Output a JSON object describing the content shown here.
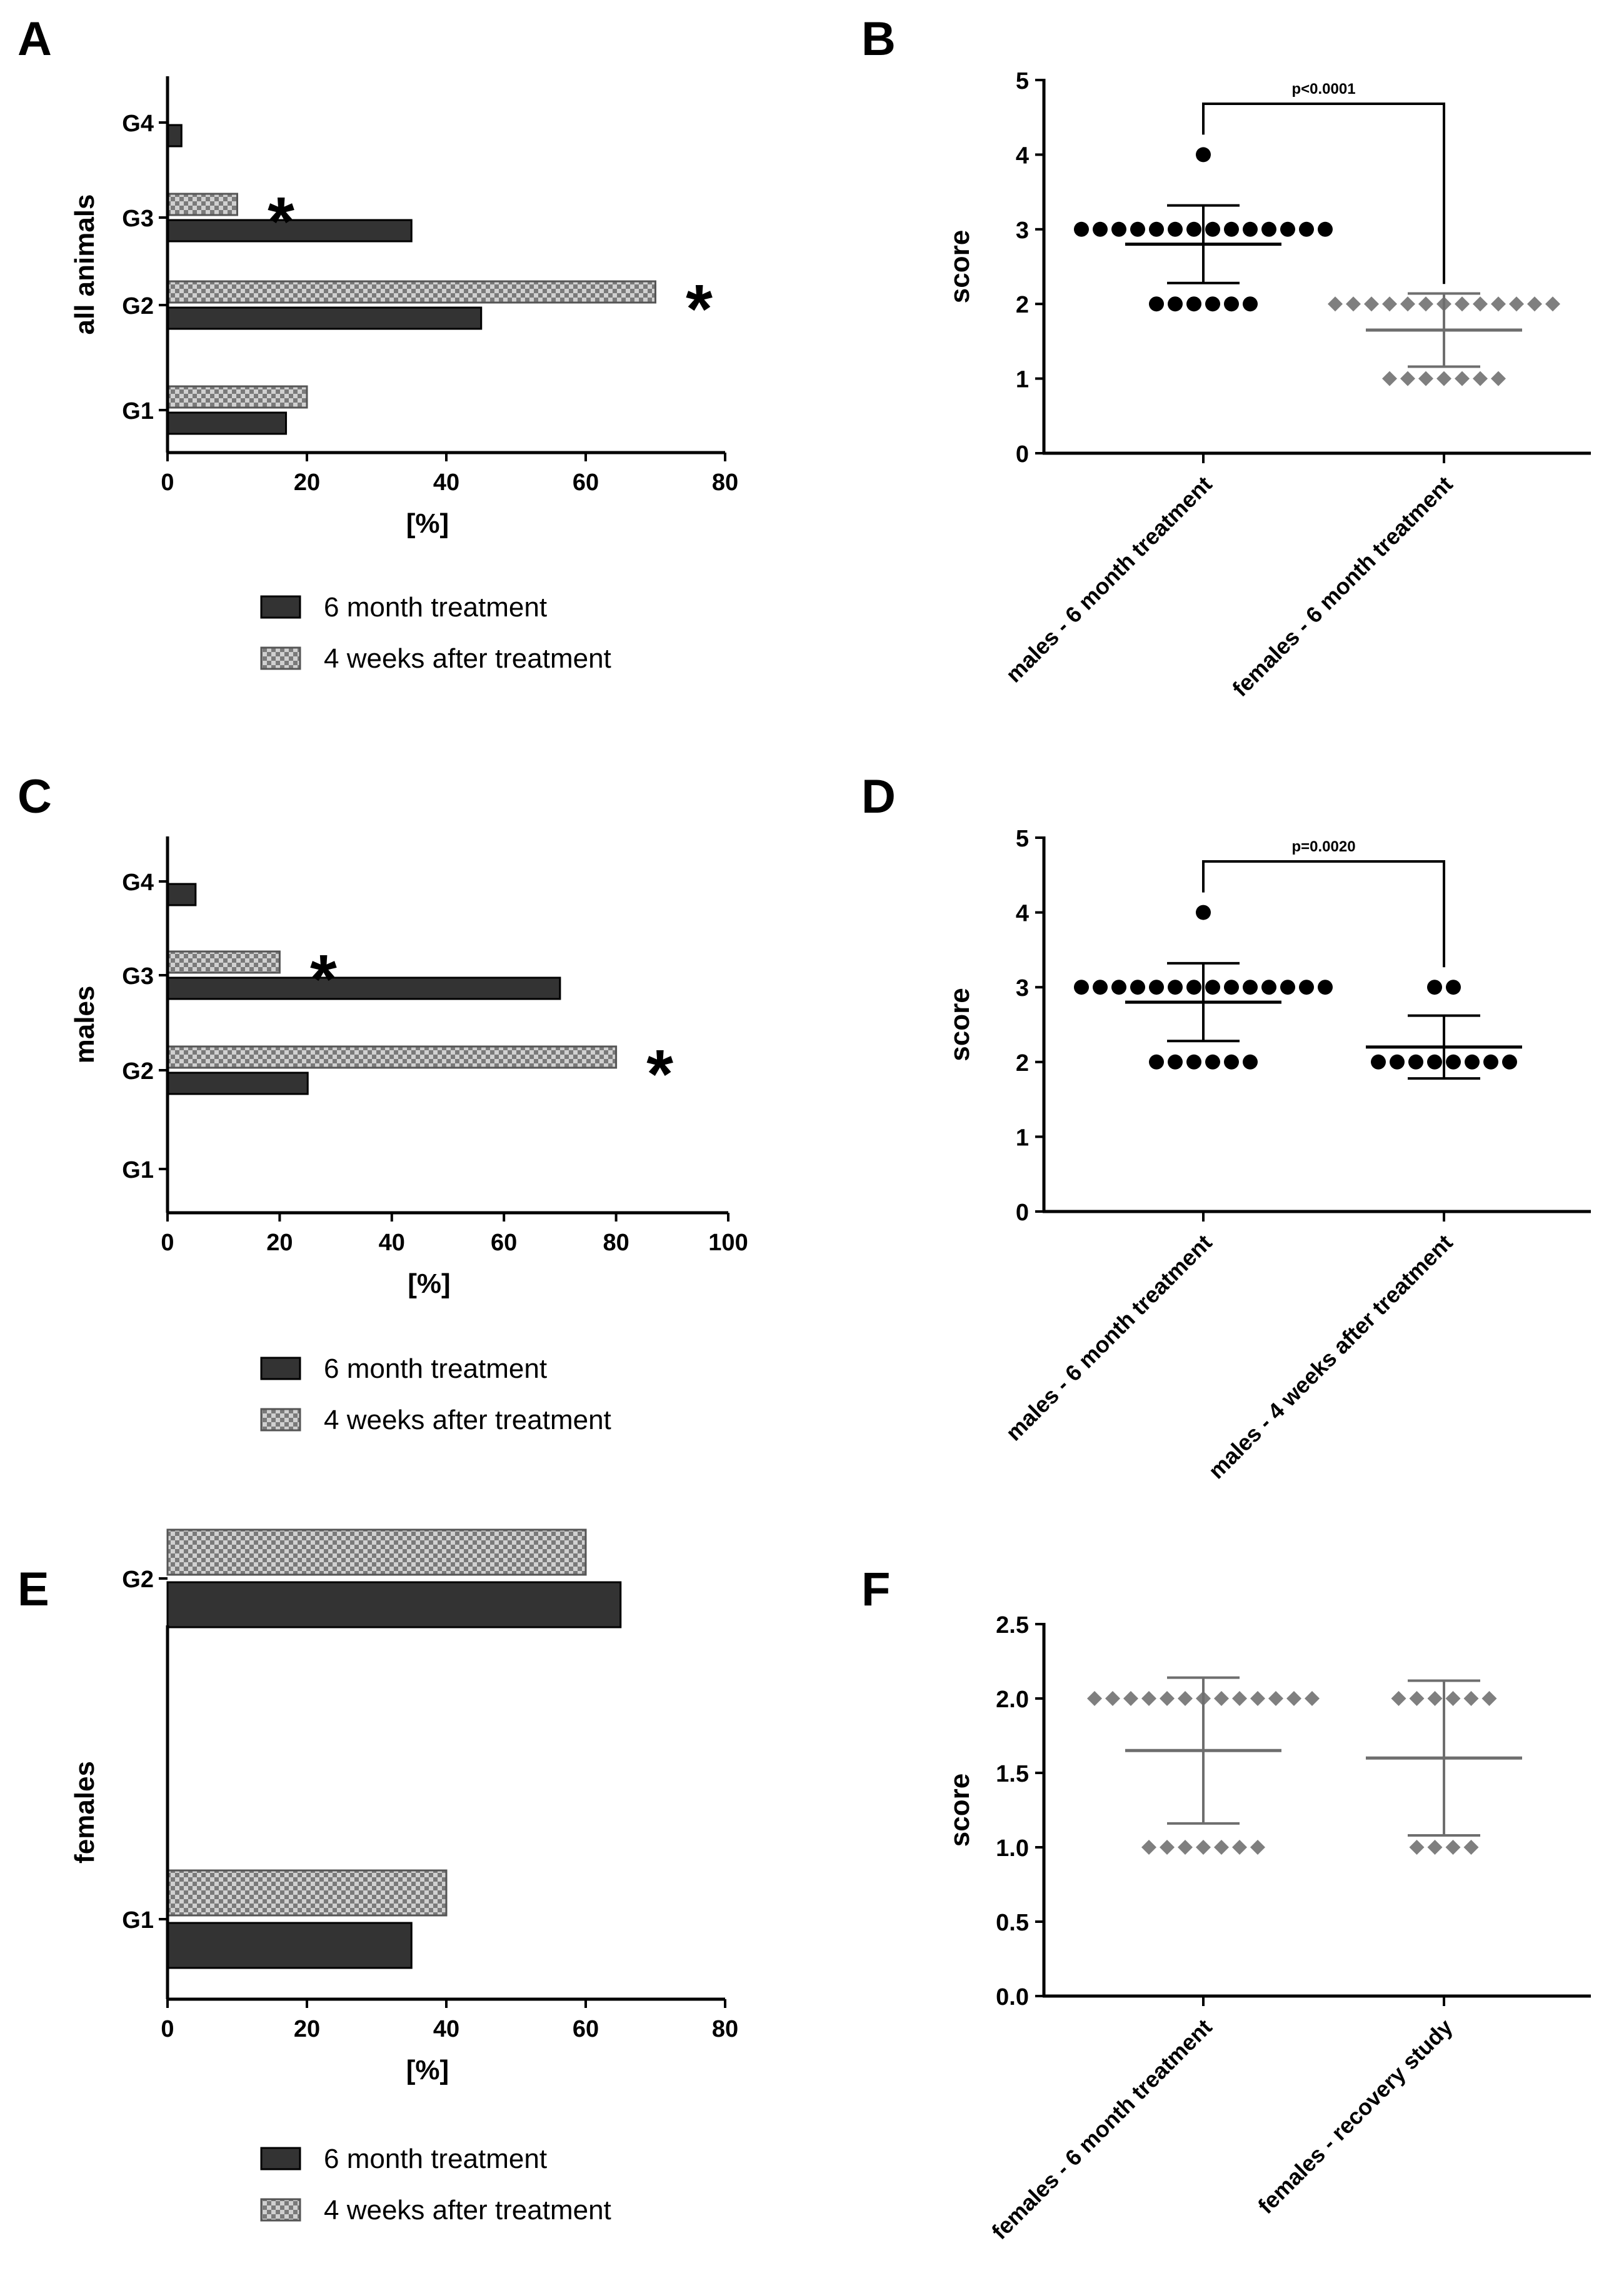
{
  "colors": {
    "treatment_fill": "#333333",
    "after_light": "#d0d0d0",
    "after_dark": "#7a7a7a",
    "males_point": "#000000",
    "females_point": "#7f7f7f"
  },
  "chart_data": [
    {
      "panel": "A",
      "type": "bar",
      "orientation": "horizontal",
      "categories": [
        "G1",
        "G2",
        "G3",
        "G4"
      ],
      "series": [
        {
          "name": "6 month treatment",
          "values": [
            17,
            45,
            35,
            2
          ]
        },
        {
          "name": "4 weeks after treatment",
          "values": [
            20,
            70,
            10,
            null
          ]
        }
      ],
      "ylabel": "all animals",
      "xlabel": "[%]",
      "xlim": [
        0,
        80
      ],
      "xticks": [
        0,
        20,
        40,
        60,
        80
      ],
      "asterisks": [
        "G3",
        "G2"
      ],
      "legend": "below"
    },
    {
      "panel": "B",
      "type": "scatter",
      "ylabel": "score",
      "ylim": [
        0,
        5
      ],
      "yticks": [
        "0",
        "1",
        "2",
        "3",
        "4",
        "5"
      ],
      "groups": [
        {
          "label": "males - 6 month treatment",
          "color": "males",
          "marker": "circle",
          "points": [
            {
              "y": 4,
              "n": 1
            },
            {
              "y": 3,
              "n": 14
            },
            {
              "y": 2,
              "n": 6
            }
          ],
          "mean": 2.8,
          "sd": 0.52
        },
        {
          "label": "females - 6 month treatment",
          "color": "females",
          "marker": "diamond",
          "points": [
            {
              "y": 2,
              "n": 13
            },
            {
              "y": 1,
              "n": 7
            }
          ],
          "mean": 1.65,
          "sd": 0.49
        }
      ],
      "significance": "p<0.0001"
    },
    {
      "panel": "C",
      "type": "bar",
      "orientation": "horizontal",
      "categories": [
        "G1",
        "G2",
        "G3",
        "G4"
      ],
      "series": [
        {
          "name": "6 month treatment",
          "values": [
            null,
            25,
            70,
            5
          ]
        },
        {
          "name": "4 weeks after treatment",
          "values": [
            null,
            80,
            20,
            null
          ]
        }
      ],
      "ylabel": "males",
      "xlabel": "[%]",
      "xlim": [
        0,
        100
      ],
      "xticks": [
        0,
        20,
        40,
        60,
        80,
        100
      ],
      "asterisks": [
        "G3",
        "G2"
      ],
      "legend": "below"
    },
    {
      "panel": "D",
      "type": "scatter",
      "ylabel": "score",
      "ylim": [
        0,
        5
      ],
      "yticks": [
        "0",
        "1",
        "2",
        "3",
        "4",
        "5"
      ],
      "groups": [
        {
          "label": "males - 6 month treatment",
          "color": "males",
          "marker": "circle",
          "points": [
            {
              "y": 4,
              "n": 1
            },
            {
              "y": 3,
              "n": 14
            },
            {
              "y": 2,
              "n": 6
            }
          ],
          "mean": 2.8,
          "sd": 0.52
        },
        {
          "label": "males - 4 weeks after treatment",
          "color": "males",
          "marker": "circle",
          "points": [
            {
              "y": 3,
              "n": 2
            },
            {
              "y": 2,
              "n": 8
            }
          ],
          "mean": 2.2,
          "sd": 0.42
        }
      ],
      "significance": "p=0.0020"
    },
    {
      "panel": "E",
      "type": "bar",
      "orientation": "horizontal",
      "categories": [
        "G1",
        "G2"
      ],
      "series": [
        {
          "name": "6 month treatment",
          "values": [
            35,
            65
          ]
        },
        {
          "name": "4 weeks after treatment",
          "values": [
            40,
            60
          ]
        }
      ],
      "ylabel": "females",
      "xlabel": "[%]",
      "xlim": [
        0,
        80
      ],
      "xticks": [
        0,
        20,
        40,
        60,
        80
      ],
      "asterisks": [],
      "legend": "below"
    },
    {
      "panel": "F",
      "type": "scatter",
      "ylabel": "score",
      "ylim": [
        0,
        2.5
      ],
      "yticks": [
        "0.0",
        "0.5",
        "1.0",
        "1.5",
        "2.0",
        "2.5"
      ],
      "groups": [
        {
          "label": "females - 6 month treatment",
          "color": "females",
          "marker": "diamond",
          "points": [
            {
              "y": 2,
              "n": 13
            },
            {
              "y": 1,
              "n": 7
            }
          ],
          "mean": 1.65,
          "sd": 0.49
        },
        {
          "label": "females - recovery study",
          "color": "females",
          "marker": "diamond",
          "points": [
            {
              "y": 2,
              "n": 6
            },
            {
              "y": 1,
              "n": 4
            }
          ],
          "mean": 1.6,
          "sd": 0.52
        }
      ],
      "significance": ""
    }
  ]
}
